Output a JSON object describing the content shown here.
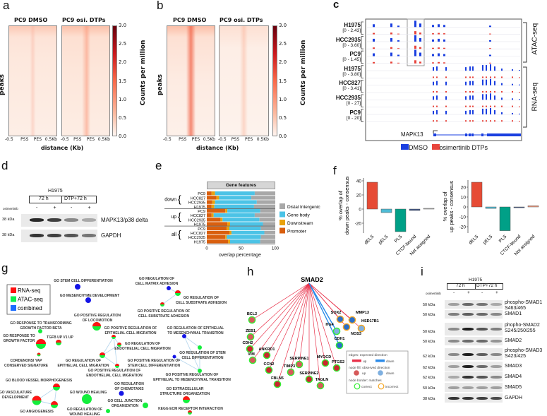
{
  "panel_labels": {
    "a": "a",
    "b": "b",
    "c": "c",
    "d": "d",
    "e": "e",
    "f": "f",
    "g": "g",
    "h": "h",
    "i": "i"
  },
  "panel_a": {
    "titles": [
      "PC9 DMSO",
      "PC9 osi. DTPs"
    ],
    "ylabel": "peaks",
    "xlabel": "distance (Kb)",
    "xticks": [
      "-0.5",
      "PSS",
      "PES",
      "0.5Kb"
    ],
    "colorbar": {
      "label": "Counts per million",
      "ticks": [
        "3.0",
        "2.5",
        "2.0",
        "1.5",
        "1.0",
        "0.5",
        "0.0"
      ],
      "range": [
        0,
        3.0
      ]
    }
  },
  "panel_b": {
    "titles": [
      "PC9 DMSO",
      "PC9 osi. DTPs"
    ],
    "ylabel": "peaks",
    "xlabel": "distance (Kb)",
    "xticks": [
      "-0.5",
      "PSS",
      "PES",
      "0.5Kb"
    ],
    "colorbar": {
      "label": "Counts per million",
      "ticks": [
        "3.0",
        "2.5",
        "2.0",
        "1.5",
        "1.0",
        "0.5",
        "0.0"
      ],
      "range": [
        0,
        3.0
      ]
    }
  },
  "panel_c": {
    "tracks": [
      {
        "name": "H1975",
        "range": "[0 - 2.43]",
        "assay": "ATAC"
      },
      {
        "name": "HCC2935",
        "range": "[0 - 3.60]",
        "assay": "ATAC"
      },
      {
        "name": "PC9",
        "range": "[0 - 1.45]",
        "assay": "ATAC"
      },
      {
        "name": "H1975",
        "range": "[0 - 3.80]",
        "assay": "RNA"
      },
      {
        "name": "HCC827",
        "range": "[0 - 3.41]",
        "assay": "RNA"
      },
      {
        "name": "HCC2935",
        "range": "[0 - 27]",
        "assay": "RNA"
      },
      {
        "name": "PC9",
        "range": "[0 - 20]",
        "assay": "RNA"
      }
    ],
    "groups": [
      "ATAC-seq",
      "RNA-seq"
    ],
    "gene": "MAPK13",
    "legend": [
      {
        "label": "DMSO",
        "color": "#1a3fe0"
      },
      {
        "label": "osimertinib DTPs",
        "color": "#e8453c"
      }
    ]
  },
  "panel_d": {
    "cell_line": "H1975",
    "conditions": [
      "72 h",
      "DTP+72 h"
    ],
    "treatment_label": "osimertinib",
    "signs": [
      "-",
      "+",
      "-",
      "+"
    ],
    "blots": [
      {
        "label": "MAPK13/p38 delta",
        "kda": "38 kDa",
        "intensity": [
          0.9,
          0.8,
          0.45,
          0.3
        ]
      },
      {
        "label": "GAPDH",
        "kda": "38 kDa",
        "intensity": [
          0.85,
          0.8,
          0.7,
          0.55
        ]
      }
    ]
  },
  "panel_e": {
    "title": "Gene features",
    "xlabel": "overlap percentage",
    "xticks": [
      "0",
      "50",
      "100"
    ],
    "groups": [
      "down",
      "up",
      "all"
    ],
    "legend": [
      {
        "label": "Distal Intergenic",
        "color": "#a8a8a8"
      },
      {
        "label": "Gene body",
        "color": "#4cc3e6"
      },
      {
        "label": "Downstream",
        "color": "#e9a20d"
      },
      {
        "label": "Promoter",
        "color": "#d95f0e"
      }
    ]
  },
  "panel_f": {
    "plots": [
      {
        "ylabel": [
          "% overlap of",
          "down peaks - consensus"
        ],
        "yticks": [
          "40",
          "20",
          "0",
          "-20"
        ]
      },
      {
        "ylabel": [
          "% overlap of",
          "up peaks - consensus"
        ],
        "yticks": [
          "20",
          "10",
          "0",
          "-10",
          "-20"
        ]
      }
    ]
  },
  "chart_data": [
    {
      "type": "bar",
      "orientation": "horizontal",
      "stacked": true,
      "title": "Gene features",
      "xlabel": "overlap percentage",
      "xlim": [
        0,
        100
      ],
      "categories": [
        {
          "group": "down",
          "line": "PC9"
        },
        {
          "group": "down",
          "line": "HCC827"
        },
        {
          "group": "down",
          "line": "HCC2935"
        },
        {
          "group": "down",
          "line": "H1975"
        },
        {
          "group": "up",
          "line": "PC9"
        },
        {
          "group": "up",
          "line": "HCC827"
        },
        {
          "group": "up",
          "line": "HCC2935"
        },
        {
          "group": "up",
          "line": "H1975"
        },
        {
          "group": "all",
          "line": "PC9"
        },
        {
          "group": "all",
          "line": "HCC827"
        },
        {
          "group": "all",
          "line": "HCC2935"
        },
        {
          "group": "all",
          "line": "H1975"
        }
      ],
      "series": [
        {
          "name": "Promoter",
          "values": [
            7,
            14,
            8,
            7,
            27,
            7,
            20,
            30,
            29,
            33,
            27,
            31
          ]
        },
        {
          "name": "Downstream",
          "values": [
            5,
            4,
            4,
            4,
            3,
            3,
            3,
            4,
            4,
            3,
            2,
            3
          ]
        },
        {
          "name": "Gene body",
          "values": [
            58,
            47,
            61,
            58,
            48,
            60,
            54,
            48,
            46,
            48,
            50,
            44
          ]
        },
        {
          "name": "Distal Intergenic",
          "values": [
            30,
            35,
            27,
            31,
            22,
            30,
            23,
            18,
            21,
            16,
            21,
            22
          ]
        }
      ],
      "legend": "right"
    },
    {
      "type": "bar",
      "categories": [
        "dELS",
        "pELS",
        "PLS",
        "CTCF-bound",
        "Not assigned"
      ],
      "values": [
        38,
        -5,
        -32,
        -2,
        0.5
      ],
      "ylabel": "% overlap of down peaks - consensus",
      "ylim": [
        -33,
        42
      ],
      "colors": [
        "#e64b35",
        "#4dbbd5",
        "#00a087",
        "#3c5488",
        "#c8c8c8"
      ]
    },
    {
      "type": "bar",
      "categories": [
        "dELS",
        "pELS",
        "PLS",
        "CTCF-bound",
        "Not assigned"
      ],
      "values": [
        25,
        -1.5,
        -24,
        -0.8,
        1.2
      ],
      "ylabel": "% overlap of up peaks - consensus",
      "ylim": [
        -25,
        27
      ],
      "colors": [
        "#e64b35",
        "#4dbbd5",
        "#00a087",
        "#3c5488",
        "#f39b7f"
      ]
    }
  ],
  "panel_g": {
    "legend": [
      {
        "label": "RNA-seq",
        "color": "#ff1010"
      },
      {
        "label": "ATAC-seq",
        "color": "#10ee50"
      },
      {
        "label": "combined",
        "color": "#1a6cff"
      }
    ],
    "terms": [
      {
        "label": [
          "GO STEM CELL DIFFERENTIATION"
        ],
        "type": "combined"
      },
      {
        "label": [
          "GO MESENCHYME DEVELOPMENT"
        ],
        "type": "combined"
      },
      {
        "label": [
          "GO REGULATION OF",
          "CELL MATRIX ADHESION"
        ],
        "type": "combined"
      },
      {
        "label": [
          "GO REGULATION OF",
          "CELL SUBSTRATE ADHESION"
        ],
        "type": "both"
      },
      {
        "label": [
          "GO POSITIVE REGULATION OF",
          "CELL SUBSTRATE ADHESION"
        ],
        "type": "both"
      },
      {
        "label": [
          "GO POSITIVE REGULATION",
          "OF LOCOMOTION"
        ],
        "type": "both"
      },
      {
        "label": [
          "GO RESPONSE TO TRANSFORMING",
          "GROWTH FACTOR BETA"
        ],
        "type": "atac"
      },
      {
        "label": [
          "GO RESPONSE TO",
          "GROWTH FACTOR"
        ],
        "type": "both"
      },
      {
        "label": [
          "TGFB UP V1 UP"
        ],
        "type": "both"
      },
      {
        "label": [
          "CORDENONSI YAP",
          "CONSERVED SIGNATURE"
        ],
        "type": "both"
      },
      {
        "label": [
          "GO POSITIVE REGULATION OF",
          "EPITHELIAL CELL MIGRATION"
        ],
        "type": "both"
      },
      {
        "label": [
          "GO REGULATION OF",
          "ENDOTHELIAL CELL MIGRATION"
        ],
        "type": "both"
      },
      {
        "label": [
          "GO REGULATION OF",
          "EPITHELIAL CELL MIGRATION"
        ],
        "type": "both"
      },
      {
        "label": [
          "GO POSITIVE REGULATION OF",
          "ENDOTHELIAL CELL MIGRATION"
        ],
        "type": "both"
      },
      {
        "label": [
          "GO REGULATION OF EPITHELIAL",
          "TO MESENCHYMAL TRANSITION"
        ],
        "type": "combined"
      },
      {
        "label": [
          "GO REGULATION OF STEM",
          "CELL DIFFERENTIATION"
        ],
        "type": "atac"
      },
      {
        "label": [
          "GO POSITIVE REGULATION OF",
          "STEM CELL DIFFERENTIATION"
        ],
        "type": "combined"
      },
      {
        "label": [
          "GO POSITIVE REGULATION OF",
          "EPITHELIAL TO MESENCHYMAL TRANSITION"
        ],
        "type": "atac"
      },
      {
        "label": [
          "GO BLOOD VESSEL MORPHOGENESIS"
        ],
        "type": "both"
      },
      {
        "label": [
          "GO VASCULATURE",
          "DEVELOPMENT"
        ],
        "type": "both"
      },
      {
        "label": [
          "GO ANGIOGENESIS"
        ],
        "type": "both"
      },
      {
        "label": [
          "GO WOUND HEALING"
        ],
        "type": "atac"
      },
      {
        "label": [
          "GO REGULATION",
          "OF CHEMOTAXIS"
        ],
        "type": "combined"
      },
      {
        "label": [
          "GO CELL JUNCTION",
          "ORGANIZATION"
        ],
        "type": "atac"
      },
      {
        "label": [
          "GO REGULATION OF",
          "WOUND HEALING"
        ],
        "type": "atac"
      },
      {
        "label": [
          "GO EXTRACELLULAR",
          "STRUCTURE ORGANIZATION"
        ],
        "type": "both"
      },
      {
        "label": [
          "KEGG ECM RECEPTOR INTERACTION"
        ],
        "type": "both"
      }
    ],
    "edges": [
      [
        2,
        3
      ],
      [
        3,
        4
      ],
      [
        10,
        12
      ],
      [
        10,
        13
      ],
      [
        10,
        11
      ],
      [
        12,
        11
      ],
      [
        12,
        13
      ],
      [
        14,
        15
      ],
      [
        14,
        17
      ],
      [
        15,
        17
      ],
      [
        16,
        17
      ],
      [
        18,
        19
      ],
      [
        19,
        20
      ],
      [
        18,
        20
      ]
    ]
  },
  "panel_h": {
    "hub": "SMAD2",
    "genes": [
      {
        "name": "BCL2",
        "edge": "up",
        "observed": "up",
        "match": "correct"
      },
      {
        "name": "ZEB1",
        "edge": "up",
        "observed": "up",
        "match": "correct"
      },
      {
        "name": "CDH2",
        "edge": "up",
        "observed": "up",
        "match": "correct"
      },
      {
        "name": "VIM",
        "edge": "up",
        "observed": "up",
        "match": "correct"
      },
      {
        "name": "ANKRD1",
        "edge": "up",
        "observed": "up",
        "match": "correct"
      },
      {
        "name": "CCN2",
        "edge": "up",
        "observed": "up",
        "match": "correct"
      },
      {
        "name": "FBLN5",
        "edge": "up",
        "observed": "up",
        "match": "correct"
      },
      {
        "name": "TIMP3",
        "edge": "up",
        "observed": "up",
        "match": "correct"
      },
      {
        "name": "SERPINE1",
        "edge": "up",
        "observed": "up",
        "match": "correct"
      },
      {
        "name": "SERPINE2",
        "edge": "up",
        "observed": "up",
        "match": "correct"
      },
      {
        "name": "TAGLN",
        "edge": "up",
        "observed": "up",
        "match": "correct"
      },
      {
        "name": "MYOCD",
        "edge": "up",
        "observed": "up",
        "match": "correct"
      },
      {
        "name": "PTGS2",
        "edge": "up",
        "observed": "up",
        "match": "correct"
      },
      {
        "name": "SOX2",
        "edge": "up",
        "observed": "down",
        "match": "incorrect"
      },
      {
        "name": "MMP13",
        "edge": "up",
        "observed": "down",
        "match": "incorrect"
      },
      {
        "name": "HSD17B1",
        "edge": "up",
        "observed": "down",
        "match": "incorrect"
      },
      {
        "name": "NOS3",
        "edge": "up",
        "observed": "down",
        "match": "incorrect"
      },
      {
        "name": "HGF",
        "edge": "down",
        "observed": "down",
        "match": "correct"
      },
      {
        "name": "CDH1",
        "edge": "down",
        "observed": "down",
        "match": "correct"
      }
    ],
    "legend": {
      "edges_title": "edges: expected direction",
      "fill_title": "node fill: observed direction",
      "border_title": "node border: matches",
      "up": "up",
      "down": "down",
      "correct": "correct",
      "incorrect": "incorrect"
    }
  },
  "panel_i": {
    "cell_line": "H1975",
    "conditions": [
      "72 h",
      "DTP+72 h"
    ],
    "treatment_label": "osimertinib",
    "signs": [
      "-",
      "+",
      "-",
      "+"
    ],
    "blots": [
      {
        "label": [
          "phospho-SMAD1",
          "S463/465"
        ],
        "kda": "50 kDa",
        "intensity": [
          0.35,
          0.6,
          0.55,
          0.3
        ]
      },
      {
        "label": [
          "SMAD1"
        ],
        "kda": "50 kDa",
        "intensity": [
          0.5,
          0.65,
          0.6,
          0.45
        ]
      },
      {
        "label": [
          "phopho-SMAD2",
          "S245/250/255"
        ],
        "kda": "50 kDa",
        "intensity": [
          0.45,
          0.95,
          0.7,
          0.5
        ]
      },
      {
        "label": [
          "SMAD2"
        ],
        "kda": "50 kDa",
        "intensity": [
          0.45,
          0.6,
          0.6,
          0.4
        ]
      },
      {
        "label": [
          "phospho-SMAD3",
          "S423/425"
        ],
        "kda": "62 kDa",
        "intensity": [
          0.45,
          0.95,
          0.65,
          0.45
        ]
      },
      {
        "label": [
          "SMAD3"
        ],
        "kda": "62 kDa",
        "intensity": [
          0.35,
          0.95,
          0.6,
          0.35
        ]
      },
      {
        "label": [
          "SMAD4"
        ],
        "kda": "62 kDa",
        "intensity": [
          0.3,
          0.85,
          0.7,
          0.45
        ]
      },
      {
        "label": [
          "SMAD5"
        ],
        "kda": "50 kDa",
        "intensity": [
          0.35,
          0.35,
          0.35,
          0.35
        ]
      },
      {
        "label": [
          "GAPDH"
        ],
        "kda": "38 kDa",
        "intensity": [
          0.85,
          0.85,
          0.8,
          0.75
        ]
      }
    ]
  }
}
